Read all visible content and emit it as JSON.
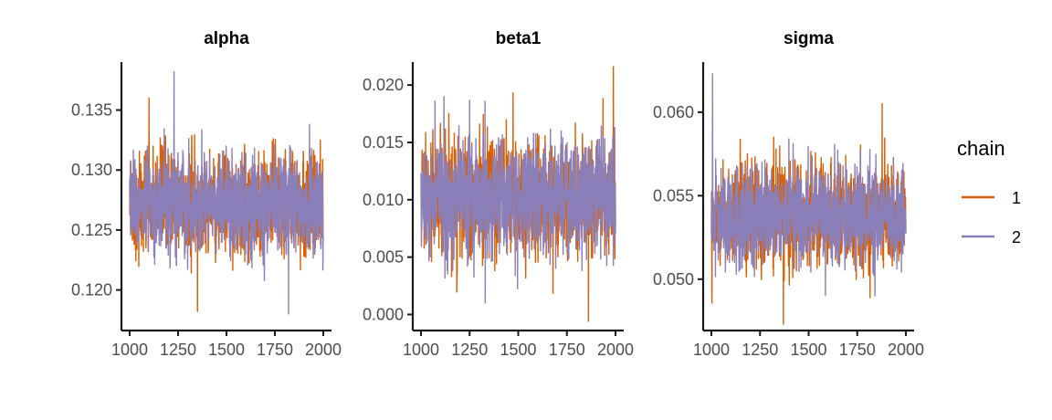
{
  "chart_data": [
    {
      "type": "line",
      "title": "alpha",
      "x_range": [
        1000,
        2000
      ],
      "ylim": [
        0.117,
        0.139
      ],
      "x_ticks": [
        1000,
        1250,
        1500,
        1750,
        2000
      ],
      "x_tick_labels": [
        "1000",
        "1250",
        "1500",
        "1750",
        "2000"
      ],
      "y_ticks": [
        0.12,
        0.125,
        0.13,
        0.135
      ],
      "y_tick_labels": [
        "0.120",
        "0.125",
        "0.130",
        "0.135"
      ],
      "series": [
        {
          "name": "1",
          "center": 0.1272,
          "spread": 0.0021,
          "max": 0.136,
          "min": 0.1182
        },
        {
          "name": "2",
          "center": 0.1272,
          "spread": 0.0021,
          "max": 0.1382,
          "min": 0.118
        }
      ]
    },
    {
      "type": "line",
      "title": "beta1",
      "x_range": [
        1000,
        2000
      ],
      "ylim": [
        -0.001,
        0.022
      ],
      "x_ticks": [
        1000,
        1250,
        1500,
        1750,
        2000
      ],
      "x_tick_labels": [
        "1000",
        "1250",
        "1500",
        "1750",
        "2000"
      ],
      "y_ticks": [
        0.0,
        0.005,
        0.01,
        0.015,
        0.02
      ],
      "y_tick_labels": [
        "0.000",
        "0.005",
        "0.010",
        "0.015",
        "0.020"
      ],
      "series": [
        {
          "name": "1",
          "center": 0.0101,
          "spread": 0.0025,
          "max": 0.0216,
          "min": -0.0006
        },
        {
          "name": "2",
          "center": 0.0101,
          "spread": 0.0025,
          "max": 0.019,
          "min": 0.001
        }
      ]
    },
    {
      "type": "line",
      "title": "sigma",
      "x_range": [
        1000,
        2000
      ],
      "ylim": [
        0.0472,
        0.063
      ],
      "x_ticks": [
        1000,
        1250,
        1500,
        1750,
        2000
      ],
      "x_tick_labels": [
        "1000",
        "1250",
        "1500",
        "1750",
        "2000"
      ],
      "y_ticks": [
        0.05,
        0.055,
        0.06
      ],
      "y_tick_labels": [
        "0.050",
        "0.055",
        "0.060"
      ],
      "series": [
        {
          "name": "1",
          "center": 0.0538,
          "spread": 0.0015,
          "max": 0.0605,
          "min": 0.0473
        },
        {
          "name": "2",
          "center": 0.0538,
          "spread": 0.0015,
          "max": 0.0623,
          "min": 0.049
        }
      ]
    }
  ],
  "legend": {
    "title": "chain",
    "items": [
      {
        "label": "1",
        "color": "#d95f02"
      },
      {
        "label": "2",
        "color": "#8b7fb9"
      }
    ]
  },
  "colors": {
    "chain_1": "#d95f02",
    "chain_2": "#8b7fb9",
    "axis": "#1a1a1a",
    "tick_text": "#4d4d4d"
  }
}
